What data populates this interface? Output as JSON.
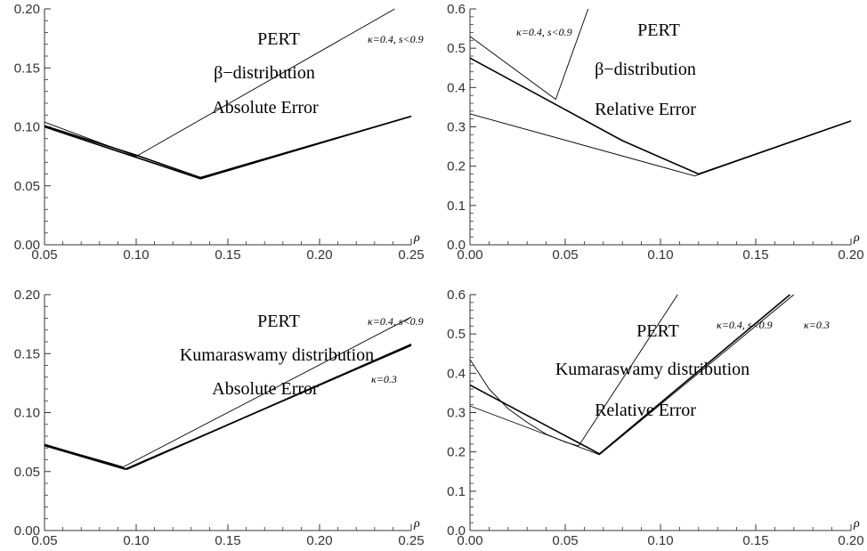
{
  "chart_data": [
    {
      "type": "line",
      "xlabel": "ρ",
      "xlim": [
        0.05,
        0.25
      ],
      "ylim": [
        0.0,
        0.2
      ],
      "x_ticks": [
        "0.05",
        "0.10",
        "0.15",
        "0.20",
        "0.25"
      ],
      "y_ticks": [
        "0.00",
        "0.05",
        "0.10",
        "0.15",
        "0.20"
      ],
      "annotations": [
        "PERT",
        "β−distribution",
        "Absolute Error",
        "κ=0.4, s<0.9"
      ],
      "series": [
        {
          "points": [
            [
              0.05,
              0.104
            ],
            [
              0.1,
              0.075
            ],
            [
              0.241,
              0.2
            ]
          ]
        },
        {
          "points": [
            [
              0.05,
              0.101
            ],
            [
              0.1,
              0.076
            ],
            [
              0.135,
              0.057
            ],
            [
              0.25,
              0.109
            ]
          ]
        },
        {
          "points": [
            [
              0.05,
              0.1
            ],
            [
              0.135,
              0.056
            ],
            [
              0.25,
              0.109
            ]
          ]
        }
      ]
    },
    {
      "type": "line",
      "xlabel": "ρ",
      "xlim": [
        0.0,
        0.2
      ],
      "ylim": [
        0.0,
        0.6
      ],
      "x_ticks": [
        "0.00",
        "0.05",
        "0.10",
        "0.15",
        "0.20"
      ],
      "y_ticks": [
        "0.0",
        "0.1",
        "0.2",
        "0.3",
        "0.4",
        "0.5",
        "0.6"
      ],
      "annotations": [
        "PERT",
        "β−distribution",
        "Relative Error",
        "κ=0.4, s<0.9"
      ],
      "series": [
        {
          "points": [
            [
              0.0,
              0.53
            ],
            [
              0.045,
              0.37
            ],
            [
              0.062,
              0.6
            ]
          ]
        },
        {
          "points": [
            [
              0.0,
              0.475
            ],
            [
              0.04,
              0.37
            ],
            [
              0.08,
              0.265
            ],
            [
              0.12,
              0.18
            ],
            [
              0.2,
              0.315
            ]
          ]
        },
        {
          "points": [
            [
              0.0,
              0.333
            ],
            [
              0.118,
              0.175
            ],
            [
              0.2,
              0.315
            ]
          ]
        }
      ]
    },
    {
      "type": "line",
      "xlabel": "ρ",
      "xlim": [
        0.05,
        0.25
      ],
      "ylim": [
        0.0,
        0.2
      ],
      "x_ticks": [
        "0.05",
        "0.10",
        "0.15",
        "0.20",
        "0.25"
      ],
      "y_ticks": [
        "0.00",
        "0.05",
        "0.10",
        "0.15",
        "0.20"
      ],
      "annotations": [
        "PERT",
        "Kumaraswamy distribution",
        "Absolute Error",
        "κ=0.4, s<0.9",
        "κ=0.3"
      ],
      "series": [
        {
          "points": [
            [
              0.05,
              0.073
            ],
            [
              0.093,
              0.054
            ],
            [
              0.25,
              0.181
            ]
          ]
        },
        {
          "points": [
            [
              0.05,
              0.073
            ],
            [
              0.095,
              0.052
            ],
            [
              0.25,
              0.158
            ]
          ]
        },
        {
          "points": [
            [
              0.05,
              0.072
            ],
            [
              0.094,
              0.052
            ],
            [
              0.25,
              0.157
            ]
          ]
        }
      ]
    },
    {
      "type": "line",
      "xlabel": "ρ",
      "xlim": [
        0.0,
        0.2
      ],
      "ylim": [
        0.0,
        0.6
      ],
      "x_ticks": [
        "0.00",
        "0.05",
        "0.10",
        "0.15",
        "0.20"
      ],
      "y_ticks": [
        "0.0",
        "0.1",
        "0.2",
        "0.3",
        "0.4",
        "0.5",
        "0.6"
      ],
      "annotations": [
        "PERT",
        "Kumaraswamy distribution",
        "Relative Error",
        "κ=0.4, s<0.9",
        "κ=0.3"
      ],
      "series": [
        {
          "points": [
            [
              0.0,
              0.435
            ],
            [
              0.01,
              0.36
            ],
            [
              0.02,
              0.31
            ],
            [
              0.03,
              0.275
            ],
            [
              0.04,
              0.245
            ],
            [
              0.05,
              0.225
            ],
            [
              0.057,
              0.215
            ],
            [
              0.109,
              0.6
            ]
          ]
        },
        {
          "points": [
            [
              0.0,
              0.37
            ],
            [
              0.068,
              0.195
            ],
            [
              0.168,
              0.6
            ]
          ]
        },
        {
          "points": [
            [
              0.0,
              0.317
            ],
            [
              0.068,
              0.193
            ],
            [
              0.17,
              0.6
            ]
          ]
        }
      ]
    }
  ]
}
